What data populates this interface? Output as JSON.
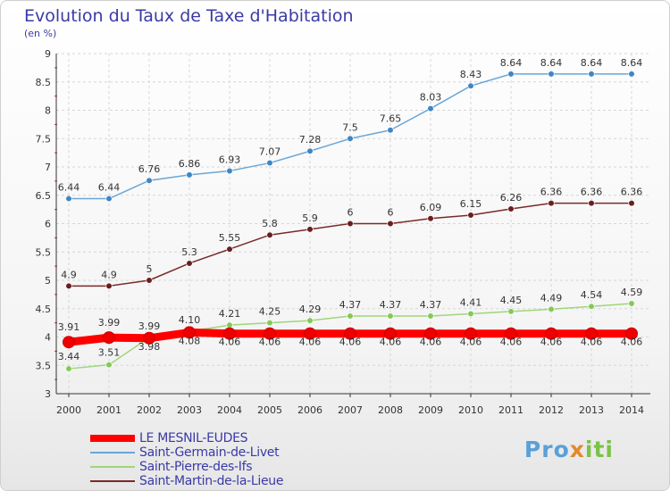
{
  "chart_data": {
    "type": "line",
    "title": "Evolution du Taux de Taxe d'Habitation",
    "subtitle": "(en %)",
    "ylim": [
      3,
      9
    ],
    "yticks": [
      "3",
      "3.5",
      "4",
      "4.5",
      "5",
      "5.5",
      "6",
      "6.5",
      "7",
      "7.5",
      "8",
      "8.5",
      "9"
    ],
    "x": [
      "2000",
      "2001",
      "2002",
      "2003",
      "2004",
      "2005",
      "2006",
      "2007",
      "2008",
      "2009",
      "2010",
      "2011",
      "2012",
      "2013",
      "2014"
    ],
    "grid": true,
    "legend_position": "bottom-left",
    "series": [
      {
        "name": "LE MESNIL-EUDES",
        "color": "#ff0000",
        "marker_color": "#ee0000",
        "width": 9,
        "values": [
          3.91,
          3.99,
          3.98,
          4.08,
          4.06,
          4.06,
          4.06,
          4.06,
          4.06,
          4.06,
          4.06,
          4.06,
          4.06,
          4.06,
          4.06
        ],
        "labels": [
          "3.91",
          "3.99",
          "3.98",
          "4.08",
          "4.06",
          "4.06",
          "4.06",
          "4.06",
          "4.06",
          "4.06",
          "4.06",
          "4.06",
          "4.06",
          "4.06",
          "4.06"
        ]
      },
      {
        "name": "Saint-Germain-de-Livet",
        "color": "#6aa6d6",
        "marker_color": "#3f86c4",
        "width": 1.5,
        "values": [
          6.44,
          6.44,
          6.76,
          6.86,
          6.93,
          7.07,
          7.28,
          7.5,
          7.65,
          8.03,
          8.43,
          8.64,
          8.64,
          8.64,
          8.64
        ],
        "labels": [
          "6.44",
          "6.44",
          "6.76",
          "6.86",
          "6.93",
          "7.07",
          "7.28",
          "7.5",
          "7.65",
          "8.03",
          "8.43",
          "8.64",
          "8.64",
          "8.64",
          "8.64"
        ]
      },
      {
        "name": "Saint-Pierre-des-Ifs",
        "color": "#9fd67a",
        "marker_color": "#84c957",
        "width": 1.5,
        "values": [
          3.44,
          3.51,
          3.99,
          4.1,
          4.21,
          4.25,
          4.29,
          4.37,
          4.37,
          4.37,
          4.41,
          4.45,
          4.49,
          4.54,
          4.59
        ],
        "labels": [
          "3.44",
          "3.51",
          "3.99",
          "4.10",
          "4.21",
          "4.25",
          "4.29",
          "4.37",
          "4.37",
          "4.37",
          "4.41",
          "4.45",
          "4.49",
          "4.54",
          "4.59"
        ]
      },
      {
        "name": "Saint-Martin-de-la-Lieue",
        "color": "#7a2a2a",
        "marker_color": "#6a1e1e",
        "width": 1.5,
        "values": [
          4.9,
          4.9,
          5,
          5.3,
          5.55,
          5.8,
          5.9,
          6,
          6,
          6.09,
          6.15,
          6.26,
          6.36,
          6.36,
          6.36
        ],
        "labels": [
          "4.9",
          "4.9",
          "5",
          "5.3",
          "5.55",
          "5.8",
          "5.9",
          "6",
          "6",
          "6.09",
          "6.15",
          "6.26",
          "6.36",
          "6.36",
          "6.36"
        ]
      }
    ]
  },
  "brand": {
    "logo_text": "Proxiti",
    "logo_chars": [
      "P",
      "r",
      "o",
      "x",
      "i",
      "t",
      "i"
    ],
    "logo_colors": [
      "#5aa0d8",
      "#5aa0d8",
      "#5aa0d8",
      "#e08a2e",
      "#7cc24a",
      "#7cc24a",
      "#7cc24a"
    ]
  }
}
